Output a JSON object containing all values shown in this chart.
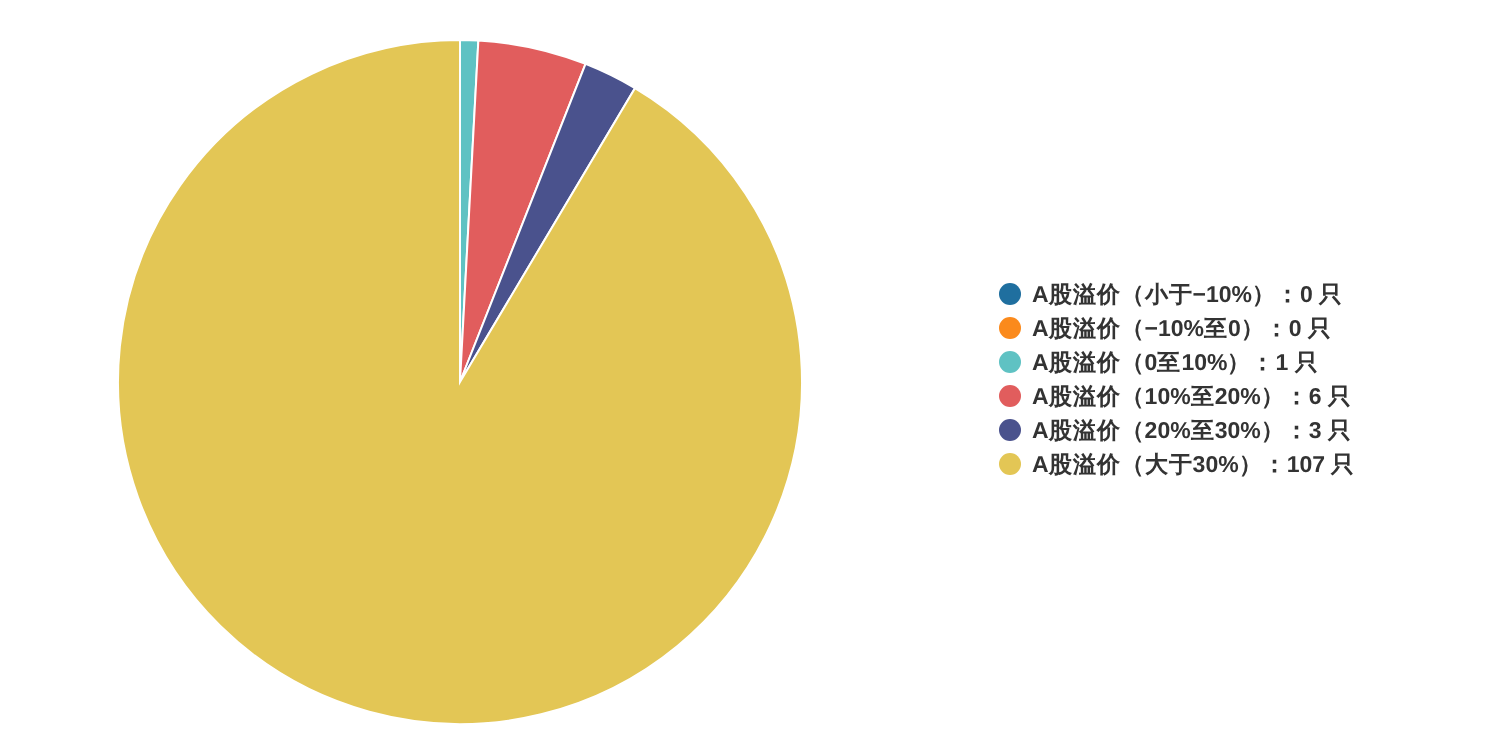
{
  "chart_data": {
    "type": "pie",
    "categories": [
      "A股溢价（小于−10%）",
      "A股溢价（−10%至0）",
      "A股溢价（0至10%）",
      "A股溢价（10%至20%）",
      "A股溢价（20%至30%）",
      "A股溢价（大于30%）"
    ],
    "values": [
      0,
      0,
      1,
      6,
      3,
      107
    ],
    "value_labels": [
      "：0 只",
      "：0 只",
      "：1 只",
      "：6 只",
      "：3 只",
      "：107 只"
    ],
    "colors": [
      "#1f6f9f",
      "#fb8a1c",
      "#5fc2c3",
      "#e15d5d",
      "#4a528d",
      "#e3c655"
    ],
    "legend": "right"
  }
}
